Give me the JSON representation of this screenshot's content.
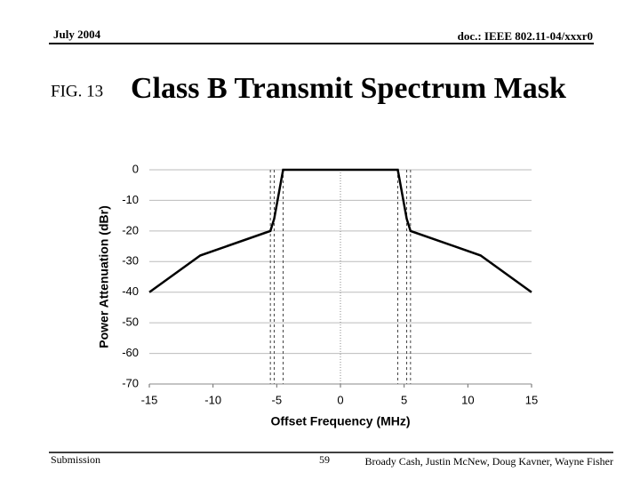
{
  "header": {
    "date": "July 2004",
    "doc": "doc.: IEEE 802.11-04/xxxr0"
  },
  "figure_label": "FIG. 13",
  "title": "Class B Transmit Spectrum Mask",
  "chart_data": {
    "type": "line",
    "x_label": "Offset Frequency (MHz)",
    "y_label": "Power Attenuation (dBr)",
    "x": [
      -15,
      -11,
      -5.5,
      -5.2,
      -4.5,
      4.5,
      5.2,
      5.5,
      11,
      15
    ],
    "series": [
      {
        "color": "#000000",
        "values": [
          -40,
          -28,
          -20,
          -16,
          0,
          0,
          -16,
          -20,
          -28,
          -40
        ]
      }
    ],
    "xlim": [
      -15,
      15
    ],
    "xticks": [
      -15,
      -10,
      -5,
      0,
      5,
      10,
      15
    ],
    "ylim": [
      -70,
      0
    ],
    "yticks": [
      0,
      -10,
      -20,
      -30,
      -40,
      -50,
      -60,
      -70
    ],
    "grid": true,
    "dashed_lines": [
      -5.5,
      -5.2,
      -4.5,
      4.5,
      5.2,
      5.5
    ],
    "center_line": 0
  },
  "footer": {
    "left": "Submission",
    "page": "59",
    "authors": "Broady Cash, Justin McNew, Doug Kavner, Wayne Fisher"
  }
}
